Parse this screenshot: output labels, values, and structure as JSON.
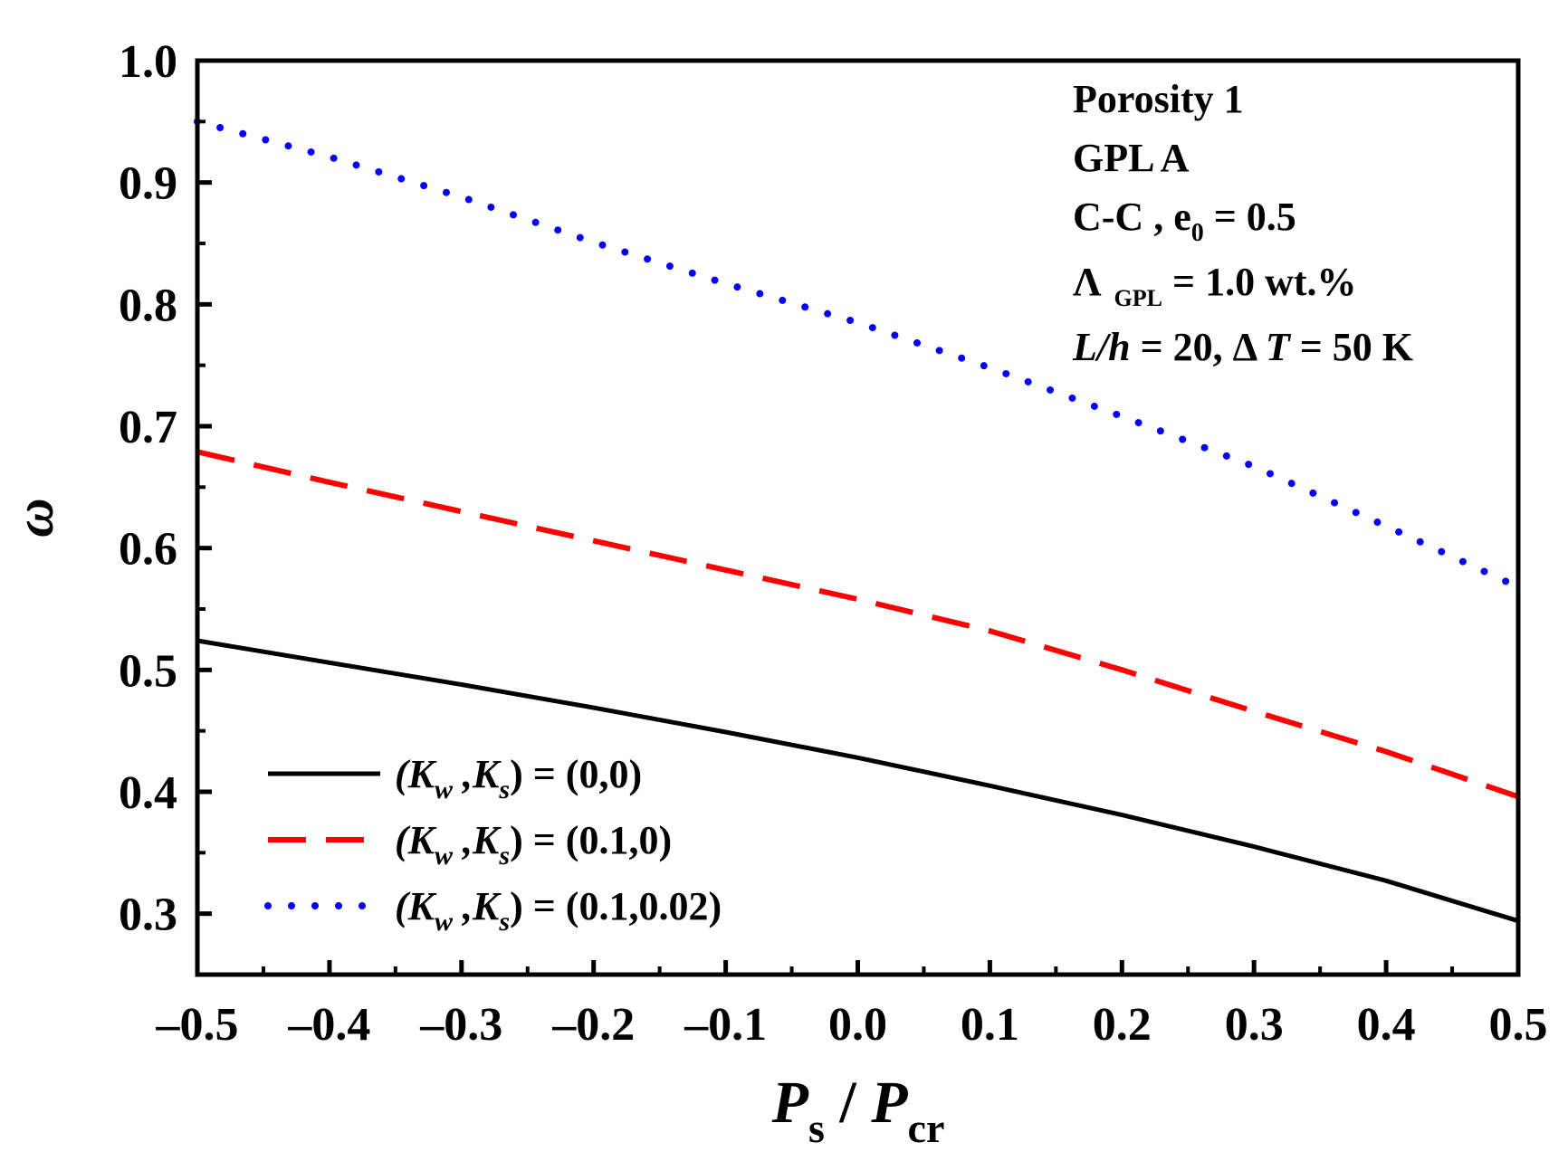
{
  "chart_data": {
    "type": "line",
    "xlabel": {
      "main": "P",
      "sub1": "s",
      "sep": " / ",
      "main2": "P",
      "sub2": "cr"
    },
    "ylabel": "ω",
    "xlim": [
      -0.5,
      0.5
    ],
    "ylim": [
      0.25,
      1.0
    ],
    "xticks": [
      "-0.5",
      "-0.4",
      "-0.3",
      "-0.2",
      "-0.1",
      "0.0",
      "0.1",
      "0.2",
      "0.3",
      "0.4",
      "0.5"
    ],
    "xtick_values": [
      -0.5,
      -0.4,
      -0.3,
      -0.2,
      -0.1,
      0.0,
      0.1,
      0.2,
      0.3,
      0.4,
      0.5
    ],
    "yticks": [
      "0.3",
      "0.4",
      "0.5",
      "0.6",
      "0.7",
      "0.8",
      "0.9",
      "1.0"
    ],
    "ytick_values": [
      0.3,
      0.4,
      0.5,
      0.6,
      0.7,
      0.8,
      0.9,
      1.0
    ],
    "x": [
      -0.5,
      -0.4,
      -0.3,
      -0.2,
      -0.1,
      0.0,
      0.1,
      0.2,
      0.3,
      0.4,
      0.5
    ],
    "series": [
      {
        "name": "(Kw ,Ks ) = (0,0)",
        "color": "#000000",
        "style": "solid",
        "values": [
          0.524,
          0.506,
          0.488,
          0.469,
          0.449,
          0.428,
          0.405,
          0.381,
          0.355,
          0.327,
          0.294
        ]
      },
      {
        "name": "(Kw ,Ks ) = (0.1,0)",
        "color": "#ff0000",
        "style": "dashed",
        "values": [
          0.679,
          0.654,
          0.63,
          0.606,
          0.582,
          0.558,
          0.532,
          0.5,
          0.466,
          0.433,
          0.396
        ]
      },
      {
        "name": "(Kw ,Ks ) = (0.1,0.02)",
        "color": "#0000ff",
        "style": "dotted",
        "values": [
          0.95,
          0.921,
          0.888,
          0.851,
          0.817,
          0.785,
          0.748,
          0.708,
          0.667,
          0.618,
          0.568
        ]
      }
    ],
    "legend": {
      "position": "bottom-left",
      "entries": [
        {
          "K": "K",
          "w": "w",
          "comma": " ,",
          "K2": "K",
          "s": "s",
          "value": ") = (0,0)"
        },
        {
          "K": "K",
          "w": "w",
          "comma": " ,",
          "K2": "K",
          "s": "s",
          "value": ") = (0.1,0)"
        },
        {
          "K": "K",
          "w": "w",
          "comma": " ,",
          "K2": "K",
          "s": "s",
          "value": ") = (0.1,0.02)"
        }
      ]
    },
    "annotations": {
      "line1": "Porosity 1",
      "line2": "GPL A",
      "line3_prefix": "C-C , e",
      "line3_sub": "0",
      "line3_suffix": " = 0.5",
      "line4_prefix": "Λ",
      "line4_sub": "GPL",
      "line4_suffix": " = 1.0 wt.%",
      "line5_a": "L/h",
      "line5_b": " = 20, Δ ",
      "line5_c": "T",
      "line5_d": " = 50 K"
    }
  }
}
